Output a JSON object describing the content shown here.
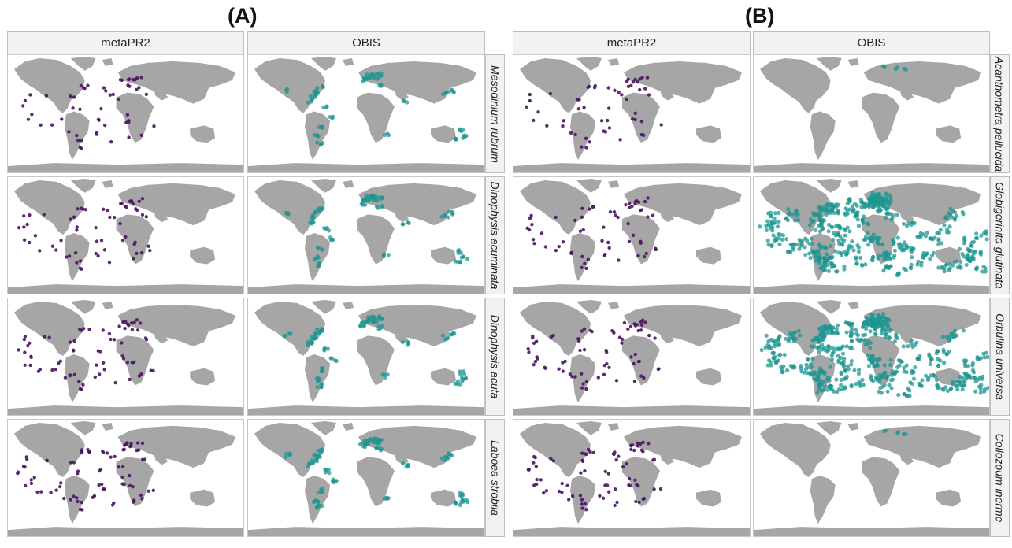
{
  "figure": {
    "panels": [
      {
        "label": "(A)",
        "columns": [
          "metaPR2",
          "OBIS"
        ],
        "rows": [
          "Mesodinium rubrum",
          "Dinophysis acuminata",
          "Dinophysis acuta",
          "Laboea strobila"
        ]
      },
      {
        "label": "(B)",
        "columns": [
          "metaPR2",
          "OBIS"
        ],
        "rows": [
          "Acanthometra pellucida",
          "Globigerinita glutinata",
          "Orbulina universa",
          "Collozoum inerme"
        ]
      }
    ]
  },
  "colors": {
    "land": "#a6a6a6",
    "ocean": "#ffffff",
    "metaPR2": "#4b1560",
    "OBIS": "#1e9690",
    "strip": "#f2f2f2"
  }
}
